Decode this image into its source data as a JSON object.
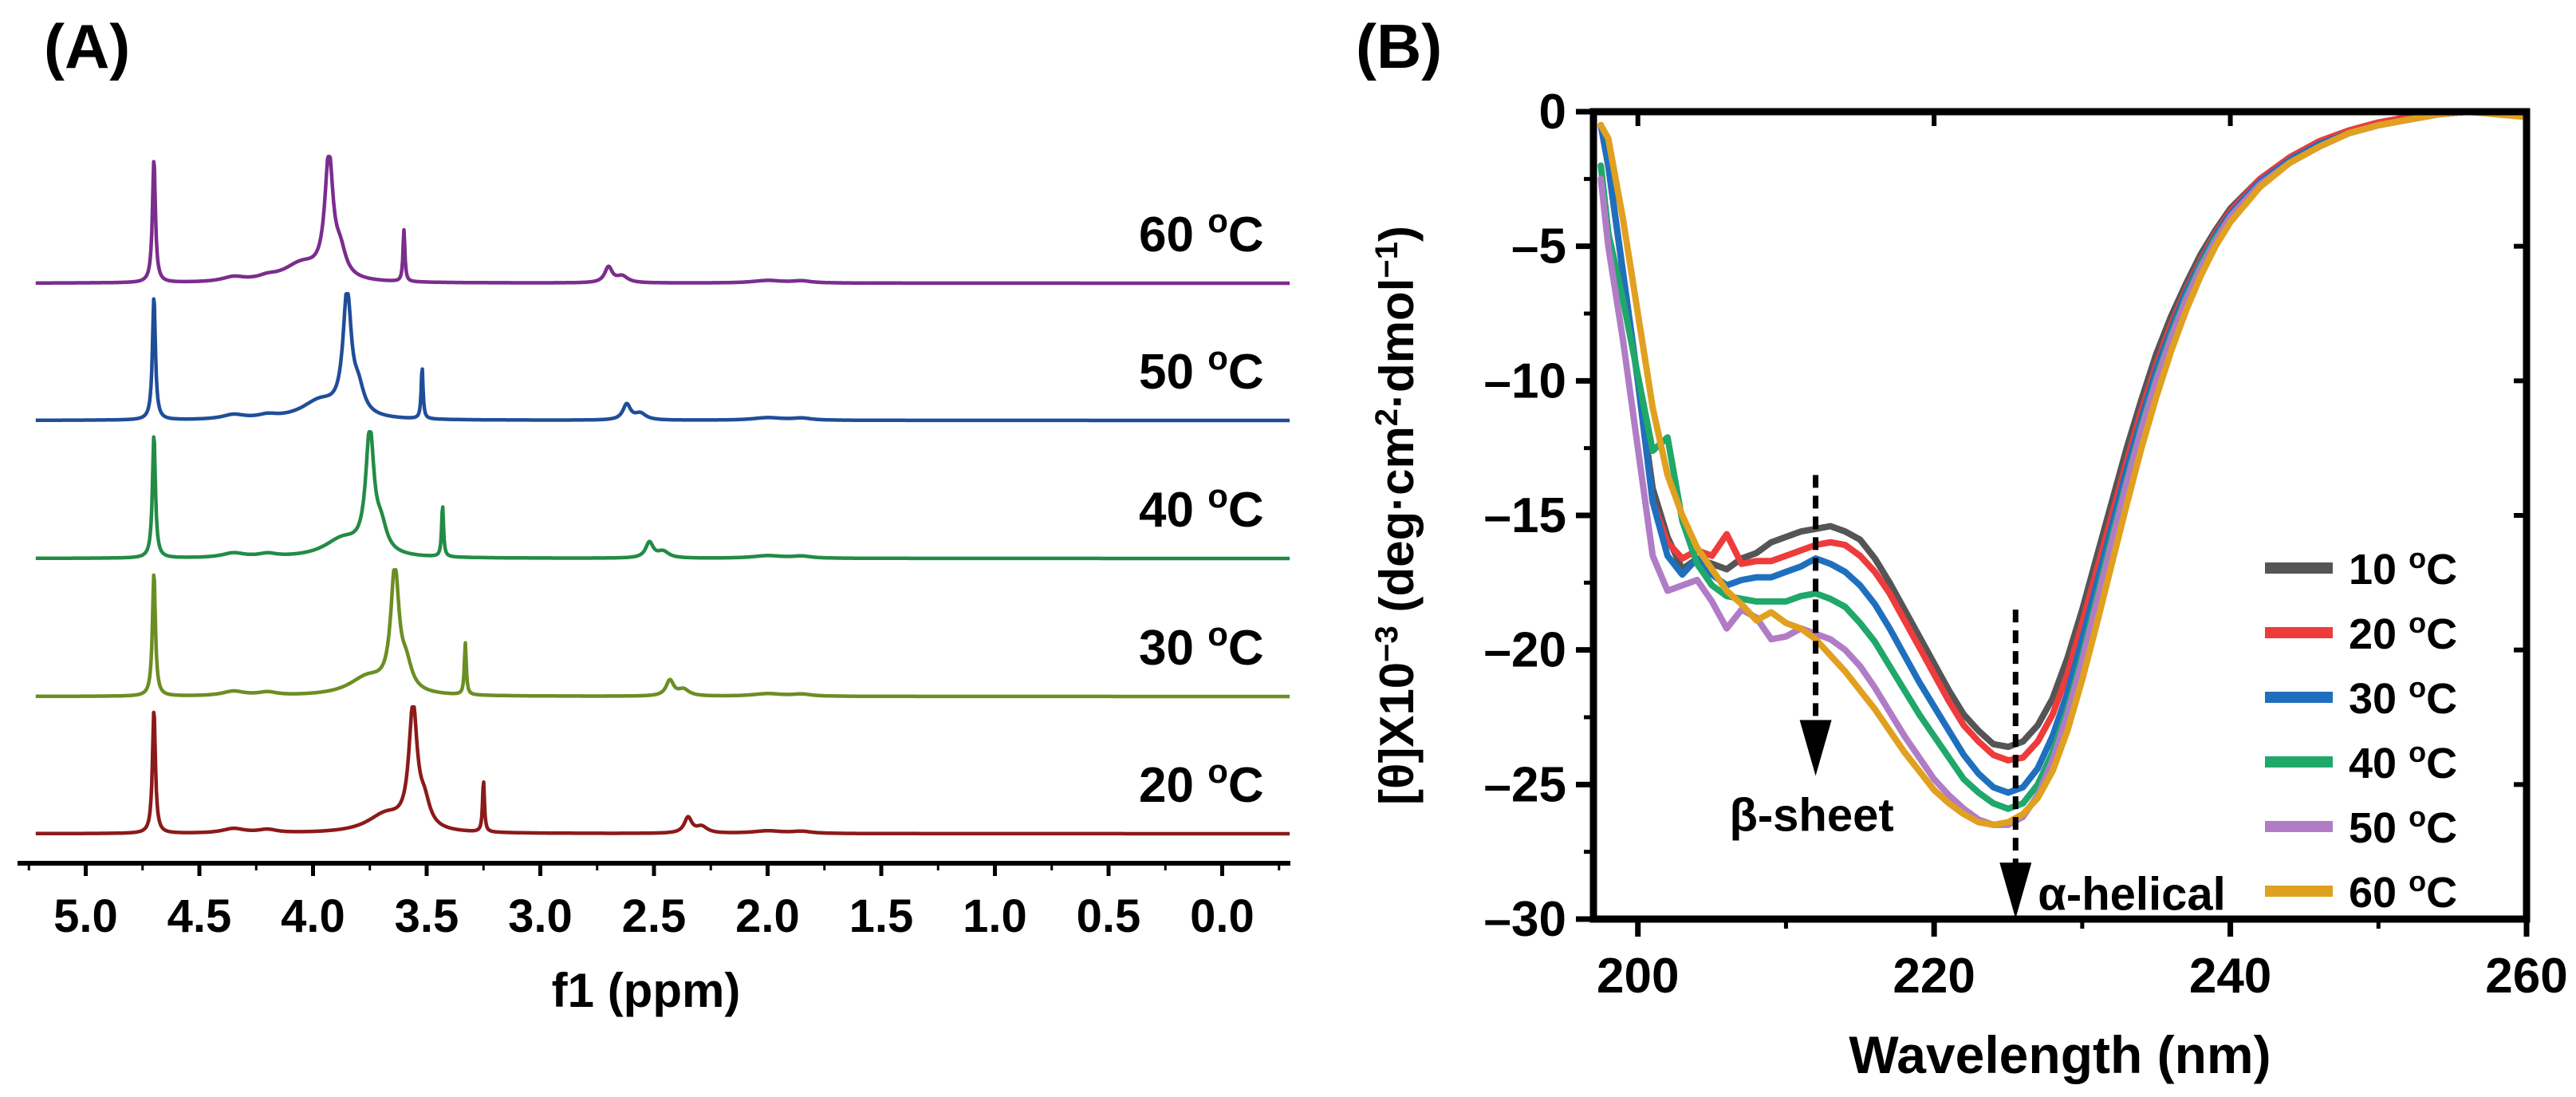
{
  "panel_a": {
    "label": "(A)",
    "chart_data": {
      "type": "line",
      "title": "",
      "xlabel": "f1 (ppm)",
      "ylabel": "",
      "xlim": [
        5.3,
        -0.3
      ],
      "x_ticks": [
        "5.0",
        "4.5",
        "4.0",
        "3.5",
        "3.0",
        "2.5",
        "2.0",
        "1.5",
        "1.0",
        "0.5",
        "0.0"
      ],
      "x_tick_values": [
        5.0,
        4.5,
        4.0,
        3.5,
        3.0,
        2.5,
        2.0,
        1.5,
        1.0,
        0.5,
        0.0
      ],
      "series": [
        {
          "name": "20 oC",
          "label_base": "20 ",
          "label_sup": "o",
          "label_unit": "C",
          "color": "#8b1a1a",
          "peaks": [
            {
              "ppm": 4.7,
              "height": 0.95
            },
            {
              "ppm": 3.56,
              "height": 0.92
            },
            {
              "ppm": 3.25,
              "height": 0.4
            },
            {
              "ppm": 2.35,
              "height": 0.12
            }
          ]
        },
        {
          "name": "30 oC",
          "label_base": "30 ",
          "label_sup": "o",
          "label_unit": "C",
          "color": "#6b8e23",
          "peaks": [
            {
              "ppm": 4.7,
              "height": 0.95
            },
            {
              "ppm": 3.64,
              "height": 0.92
            },
            {
              "ppm": 3.33,
              "height": 0.4
            },
            {
              "ppm": 2.43,
              "height": 0.12
            }
          ]
        },
        {
          "name": "40 oC",
          "label_base": "40 ",
          "label_sup": "o",
          "label_unit": "C",
          "color": "#238b45",
          "peaks": [
            {
              "ppm": 4.7,
              "height": 0.95
            },
            {
              "ppm": 3.75,
              "height": 0.92
            },
            {
              "ppm": 3.43,
              "height": 0.4
            },
            {
              "ppm": 2.52,
              "height": 0.12
            }
          ]
        },
        {
          "name": "50 oC",
          "label_base": "50 ",
          "label_sup": "o",
          "label_unit": "C",
          "color": "#1f4e99",
          "peaks": [
            {
              "ppm": 4.7,
              "height": 0.95
            },
            {
              "ppm": 3.85,
              "height": 0.92
            },
            {
              "ppm": 3.52,
              "height": 0.4
            },
            {
              "ppm": 2.62,
              "height": 0.12
            }
          ]
        },
        {
          "name": "60 oC",
          "label_base": "60 ",
          "label_sup": "o",
          "label_unit": "C",
          "color": "#7b2d8e",
          "peaks": [
            {
              "ppm": 4.7,
              "height": 0.95
            },
            {
              "ppm": 3.93,
              "height": 0.92
            },
            {
              "ppm": 3.6,
              "height": 0.4
            },
            {
              "ppm": 2.7,
              "height": 0.12
            }
          ]
        }
      ]
    }
  },
  "panel_b": {
    "label": "(B)",
    "chart_data": {
      "type": "line",
      "title": "",
      "xlabel": "Wavelength (nm)",
      "ylabel_main": "[θ]X10",
      "ylabel_exp": "−3",
      "ylabel_unit": " (deg·cm",
      "ylabel_cm_exp": "2",
      "ylabel_mid": "·dmol",
      "ylabel_mol_exp": "−1",
      "ylabel_close": ")",
      "xlim": [
        197,
        260
      ],
      "ylim": [
        -30,
        0
      ],
      "x_ticks": [
        "200",
        "220",
        "240",
        "260"
      ],
      "x_tick_values": [
        200,
        220,
        240,
        260
      ],
      "y_ticks": [
        "0",
        "–5",
        "–10",
        "–15",
        "–20",
        "–25",
        "–30"
      ],
      "y_tick_values": [
        0,
        -5,
        -10,
        -15,
        -20,
        -25,
        -30
      ],
      "legend_position": "right",
      "annotations": [
        {
          "text": "β-sheet",
          "arrow_x": 212,
          "arrow_y_top": -13.5,
          "arrow_y_bottom": -24.5
        },
        {
          "text": "α-helical",
          "arrow_x": 225.5,
          "arrow_y_top": -18.5,
          "arrow_y_bottom": -29.8
        }
      ],
      "series": [
        {
          "name": "10 oC",
          "label_base": "10 ",
          "label_sup": "o",
          "label_unit": "C",
          "color": "#555555",
          "x": [
            197.5,
            198,
            199,
            200,
            201,
            202,
            203,
            204,
            205,
            206,
            207,
            208,
            209,
            210,
            211,
            212,
            213,
            214,
            215,
            216,
            217,
            218,
            219,
            220,
            221,
            222,
            223,
            224,
            225,
            226,
            227,
            228,
            229,
            230,
            231,
            232,
            233,
            234,
            235,
            236,
            237,
            238,
            239,
            240,
            242,
            244,
            246,
            248,
            250,
            252,
            254,
            256,
            258,
            260
          ],
          "y": [
            -0.5,
            -2,
            -6,
            -10,
            -14,
            -15.8,
            -17,
            -16.6,
            -16.8,
            -17,
            -16.6,
            -16.4,
            -16,
            -15.8,
            -15.6,
            -15.5,
            -15.4,
            -15.6,
            -15.9,
            -16.6,
            -17.5,
            -18.5,
            -19.5,
            -20.5,
            -21.5,
            -22.4,
            -23,
            -23.5,
            -23.6,
            -23.4,
            -22.8,
            -21.8,
            -20.3,
            -18.5,
            -16.5,
            -14.5,
            -12.5,
            -10.7,
            -9,
            -7.6,
            -6.4,
            -5.3,
            -4.4,
            -3.6,
            -2.5,
            -1.7,
            -1.1,
            -0.7,
            -0.4,
            -0.2,
            -0.1,
            0,
            0,
            -0.1
          ]
        },
        {
          "name": "20 oC",
          "label_base": "20 ",
          "label_sup": "o",
          "label_unit": "C",
          "color": "#ee3b3b",
          "x": [
            197.5,
            198,
            199,
            200,
            201,
            202,
            203,
            204,
            205,
            206,
            207,
            208,
            209,
            210,
            211,
            212,
            213,
            214,
            215,
            216,
            217,
            218,
            219,
            220,
            221,
            222,
            223,
            224,
            225,
            226,
            227,
            228,
            229,
            230,
            231,
            232,
            233,
            234,
            235,
            236,
            237,
            238,
            239,
            240,
            242,
            244,
            246,
            248,
            250,
            252,
            254,
            256,
            258,
            260
          ],
          "y": [
            -0.5,
            -2,
            -6,
            -10,
            -14.5,
            -16,
            -16.6,
            -16.3,
            -16.5,
            -15.7,
            -16.8,
            -16.7,
            -16.7,
            -16.5,
            -16.3,
            -16.1,
            -16,
            -16.1,
            -16.5,
            -17.1,
            -17.9,
            -18.9,
            -19.9,
            -20.9,
            -21.9,
            -22.8,
            -23.4,
            -23.9,
            -24.1,
            -24,
            -23.4,
            -22.4,
            -20.9,
            -19,
            -17,
            -15,
            -13,
            -11.1,
            -9.4,
            -7.9,
            -6.6,
            -5.5,
            -4.5,
            -3.7,
            -2.5,
            -1.7,
            -1.1,
            -0.7,
            -0.4,
            -0.2,
            -0.1,
            0,
            0,
            -0.1
          ]
        },
        {
          "name": "30 oC",
          "label_base": "30 ",
          "label_sup": "o",
          "label_unit": "C",
          "color": "#1f6fbf",
          "x": [
            197.5,
            198,
            199,
            200,
            201,
            202,
            203,
            204,
            205,
            206,
            207,
            208,
            209,
            210,
            211,
            212,
            213,
            214,
            215,
            216,
            217,
            218,
            219,
            220,
            221,
            222,
            223,
            224,
            225,
            226,
            227,
            228,
            229,
            230,
            231,
            232,
            233,
            234,
            235,
            236,
            237,
            238,
            239,
            240,
            242,
            244,
            246,
            248,
            250,
            252,
            254,
            256,
            258,
            260
          ],
          "y": [
            -0.5,
            -2,
            -6,
            -10,
            -14.5,
            -16.5,
            -17.2,
            -16.6,
            -17.2,
            -17.6,
            -17.4,
            -17.3,
            -17.3,
            -17.1,
            -16.9,
            -16.6,
            -16.8,
            -17.1,
            -17.6,
            -18.3,
            -19.2,
            -20.2,
            -21.2,
            -22.1,
            -23,
            -23.9,
            -24.6,
            -25.1,
            -25.3,
            -25.1,
            -24.4,
            -23.2,
            -21.6,
            -19.6,
            -17.5,
            -15.4,
            -13.3,
            -11.4,
            -9.6,
            -8.1,
            -6.7,
            -5.6,
            -4.6,
            -3.8,
            -2.6,
            -1.8,
            -1.2,
            -0.8,
            -0.5,
            -0.3,
            -0.1,
            0,
            0,
            -0.1
          ]
        },
        {
          "name": "40 oC",
          "label_base": "40 ",
          "label_sup": "o",
          "label_unit": "C",
          "color": "#1fa86a",
          "x": [
            197.5,
            198,
            199,
            200,
            201,
            202,
            203,
            204,
            205,
            206,
            207,
            208,
            209,
            210,
            211,
            212,
            213,
            214,
            215,
            216,
            217,
            218,
            219,
            220,
            221,
            222,
            223,
            224,
            225,
            226,
            227,
            228,
            229,
            230,
            231,
            232,
            233,
            234,
            235,
            236,
            237,
            238,
            239,
            240,
            242,
            244,
            246,
            248,
            250,
            252,
            254,
            256,
            258,
            260
          ],
          "y": [
            -2,
            -4.5,
            -7,
            -9.8,
            -12.6,
            -12.1,
            -15.2,
            -16.8,
            -17.6,
            -18,
            -18.1,
            -18.2,
            -18.2,
            -18.2,
            -18,
            -17.9,
            -18.1,
            -18.4,
            -19,
            -19.7,
            -20.6,
            -21.5,
            -22.4,
            -23.2,
            -24,
            -24.8,
            -25.3,
            -25.7,
            -25.9,
            -25.7,
            -25,
            -23.8,
            -22.2,
            -20.2,
            -18,
            -15.8,
            -13.7,
            -11.7,
            -9.9,
            -8.3,
            -6.9,
            -5.7,
            -4.7,
            -3.9,
            -2.7,
            -1.9,
            -1.3,
            -0.8,
            -0.5,
            -0.3,
            -0.1,
            0,
            0,
            -0.1
          ]
        },
        {
          "name": "50 oC",
          "label_base": "50 ",
          "label_sup": "o",
          "label_unit": "C",
          "color": "#b07cc6",
          "x": [
            197.5,
            198,
            199,
            200,
            201,
            202,
            203,
            204,
            205,
            206,
            207,
            208,
            209,
            210,
            211,
            212,
            213,
            214,
            215,
            216,
            217,
            218,
            219,
            220,
            221,
            222,
            223,
            224,
            225,
            226,
            227,
            228,
            229,
            230,
            231,
            232,
            233,
            234,
            235,
            236,
            237,
            238,
            239,
            240,
            242,
            244,
            246,
            248,
            250,
            252,
            254,
            256,
            258,
            260
          ],
          "y": [
            -2.5,
            -5,
            -8.5,
            -12.5,
            -16.5,
            -17.8,
            -17.6,
            -17.4,
            -18.2,
            -19.2,
            -18.5,
            -18.8,
            -19.6,
            -19.5,
            -19.2,
            -19.4,
            -19.6,
            -20,
            -20.6,
            -21.4,
            -22.3,
            -23.2,
            -24,
            -24.8,
            -25.4,
            -25.9,
            -26.3,
            -26.5,
            -26.5,
            -26.2,
            -25.4,
            -24.1,
            -22.4,
            -20.4,
            -18.2,
            -16,
            -13.8,
            -11.8,
            -10,
            -8.4,
            -7,
            -5.8,
            -4.8,
            -3.9,
            -2.7,
            -1.9,
            -1.3,
            -0.8,
            -0.5,
            -0.3,
            -0.1,
            0,
            0,
            -0.2
          ]
        },
        {
          "name": "60 oC",
          "label_base": "60 ",
          "label_sup": "o",
          "label_unit": "C",
          "color": "#e0a020",
          "x": [
            197.5,
            198,
            199,
            200,
            201,
            202,
            203,
            204,
            205,
            206,
            207,
            208,
            209,
            210,
            211,
            212,
            213,
            214,
            215,
            216,
            217,
            218,
            219,
            220,
            221,
            222,
            223,
            224,
            225,
            226,
            227,
            228,
            229,
            230,
            231,
            232,
            233,
            234,
            235,
            236,
            237,
            238,
            239,
            240,
            242,
            244,
            246,
            248,
            250,
            252,
            254,
            256,
            258,
            260
          ],
          "y": [
            -0.5,
            -1,
            -4,
            -7.5,
            -11,
            -13.5,
            -15,
            -16.2,
            -17,
            -17.8,
            -18.3,
            -18.9,
            -18.6,
            -19,
            -19.2,
            -19.6,
            -20.2,
            -20.8,
            -21.5,
            -22.2,
            -23,
            -23.8,
            -24.5,
            -25.2,
            -25.7,
            -26.1,
            -26.4,
            -26.5,
            -26.4,
            -26.1,
            -25.5,
            -24.5,
            -23,
            -21.1,
            -19,
            -16.8,
            -14.6,
            -12.5,
            -10.6,
            -8.9,
            -7.4,
            -6.1,
            -5,
            -4.1,
            -2.8,
            -1.9,
            -1.3,
            -0.8,
            -0.5,
            -0.3,
            -0.1,
            0,
            -0.1,
            -0.2
          ]
        }
      ]
    }
  }
}
